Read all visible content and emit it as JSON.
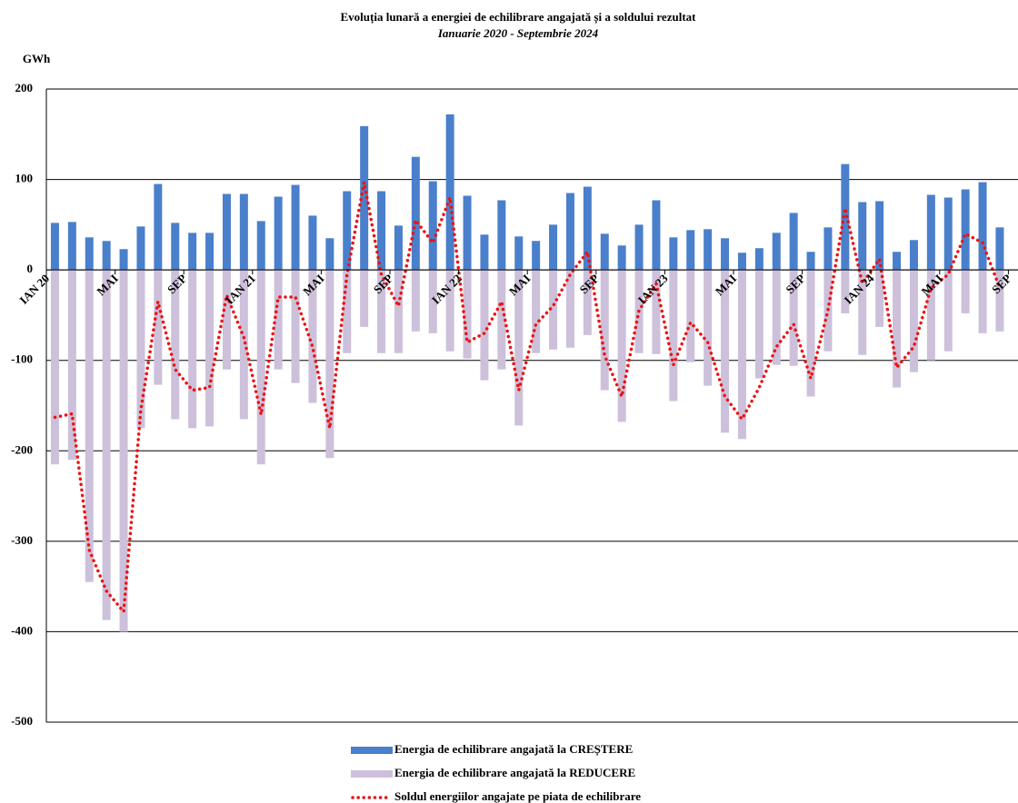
{
  "chart_data": {
    "type": "bar",
    "title": "Evoluția lunară a energiei de echilibrare angajată și a soldului rezultat",
    "subtitle": "Ianuarie 2020 - Septembrie 2024",
    "y_label": "GWh",
    "categories": [
      "IAN 20",
      null,
      null,
      null,
      "MAI",
      null,
      null,
      null,
      "SEP",
      null,
      null,
      null,
      "IAN 21",
      null,
      null,
      null,
      "MAI",
      null,
      null,
      null,
      "SEP",
      null,
      null,
      null,
      "IAN 22",
      null,
      null,
      null,
      "MAI",
      null,
      null,
      null,
      "SEP",
      null,
      null,
      null,
      "IAN 23",
      null,
      null,
      null,
      "MAI",
      null,
      null,
      null,
      "SEP",
      null,
      null,
      null,
      "IAN 24",
      null,
      null,
      null,
      "MAI",
      null,
      null,
      null,
      "SEP"
    ],
    "series": [
      {
        "name": "Energia de echilibrare angajată la CREȘTERE",
        "type": "bar",
        "color": "#4a7fcb",
        "values": [
          52,
          53,
          36,
          32,
          23,
          48,
          95,
          52,
          41,
          41,
          84,
          84,
          54,
          81,
          94,
          60,
          35,
          87,
          159,
          87,
          49,
          125,
          98,
          172,
          82,
          39,
          77,
          37,
          32,
          50,
          85,
          92,
          40,
          27,
          50,
          77,
          36,
          44,
          45,
          35,
          19,
          24,
          41,
          63,
          20,
          47,
          117,
          75,
          76,
          20,
          33,
          83,
          80,
          89,
          97,
          47,
          null
        ]
      },
      {
        "name": "Energia de echilibrare angajată la REDUCERE",
        "type": "bar",
        "color": "#ccc0da",
        "values": [
          -215,
          -210,
          -345,
          -387,
          -400,
          -175,
          -127,
          -165,
          -175,
          -173,
          -110,
          -165,
          -215,
          -110,
          -125,
          -147,
          -208,
          -92,
          -63,
          -92,
          -92,
          -68,
          -70,
          -90,
          -98,
          -122,
          -110,
          -172,
          -92,
          -88,
          -86,
          -72,
          -133,
          -168,
          -92,
          -93,
          -145,
          -102,
          -128,
          -180,
          -187,
          -120,
          -105,
          -106,
          -140,
          -90,
          -48,
          -94,
          -63,
          -130,
          -113,
          -100,
          -90,
          -48,
          -70,
          -68,
          null
        ]
      },
      {
        "name": "Soldul energiilor angajate pe piata de echilibrare",
        "type": "line",
        "color": "#ee1111",
        "values": [
          -163,
          -159,
          -310,
          -355,
          -378,
          -155,
          -35,
          -110,
          -133,
          -130,
          -28,
          -75,
          -160,
          -30,
          -30,
          -85,
          -175,
          -5,
          97,
          -5,
          -40,
          55,
          30,
          80,
          -80,
          -70,
          -35,
          -133,
          -60,
          -40,
          -5,
          20,
          -95,
          -140,
          -45,
          -15,
          -105,
          -58,
          -80,
          -140,
          -165,
          -130,
          -85,
          -60,
          -120,
          -45,
          68,
          -15,
          12,
          -108,
          -85,
          -20,
          -5,
          40,
          30,
          -20,
          null
        ]
      }
    ],
    "ylim": [
      -500,
      200
    ],
    "yticks": [
      200,
      100,
      0,
      -100,
      -200,
      -300,
      -400,
      -500
    ],
    "grid": true,
    "legend": "bottom"
  }
}
